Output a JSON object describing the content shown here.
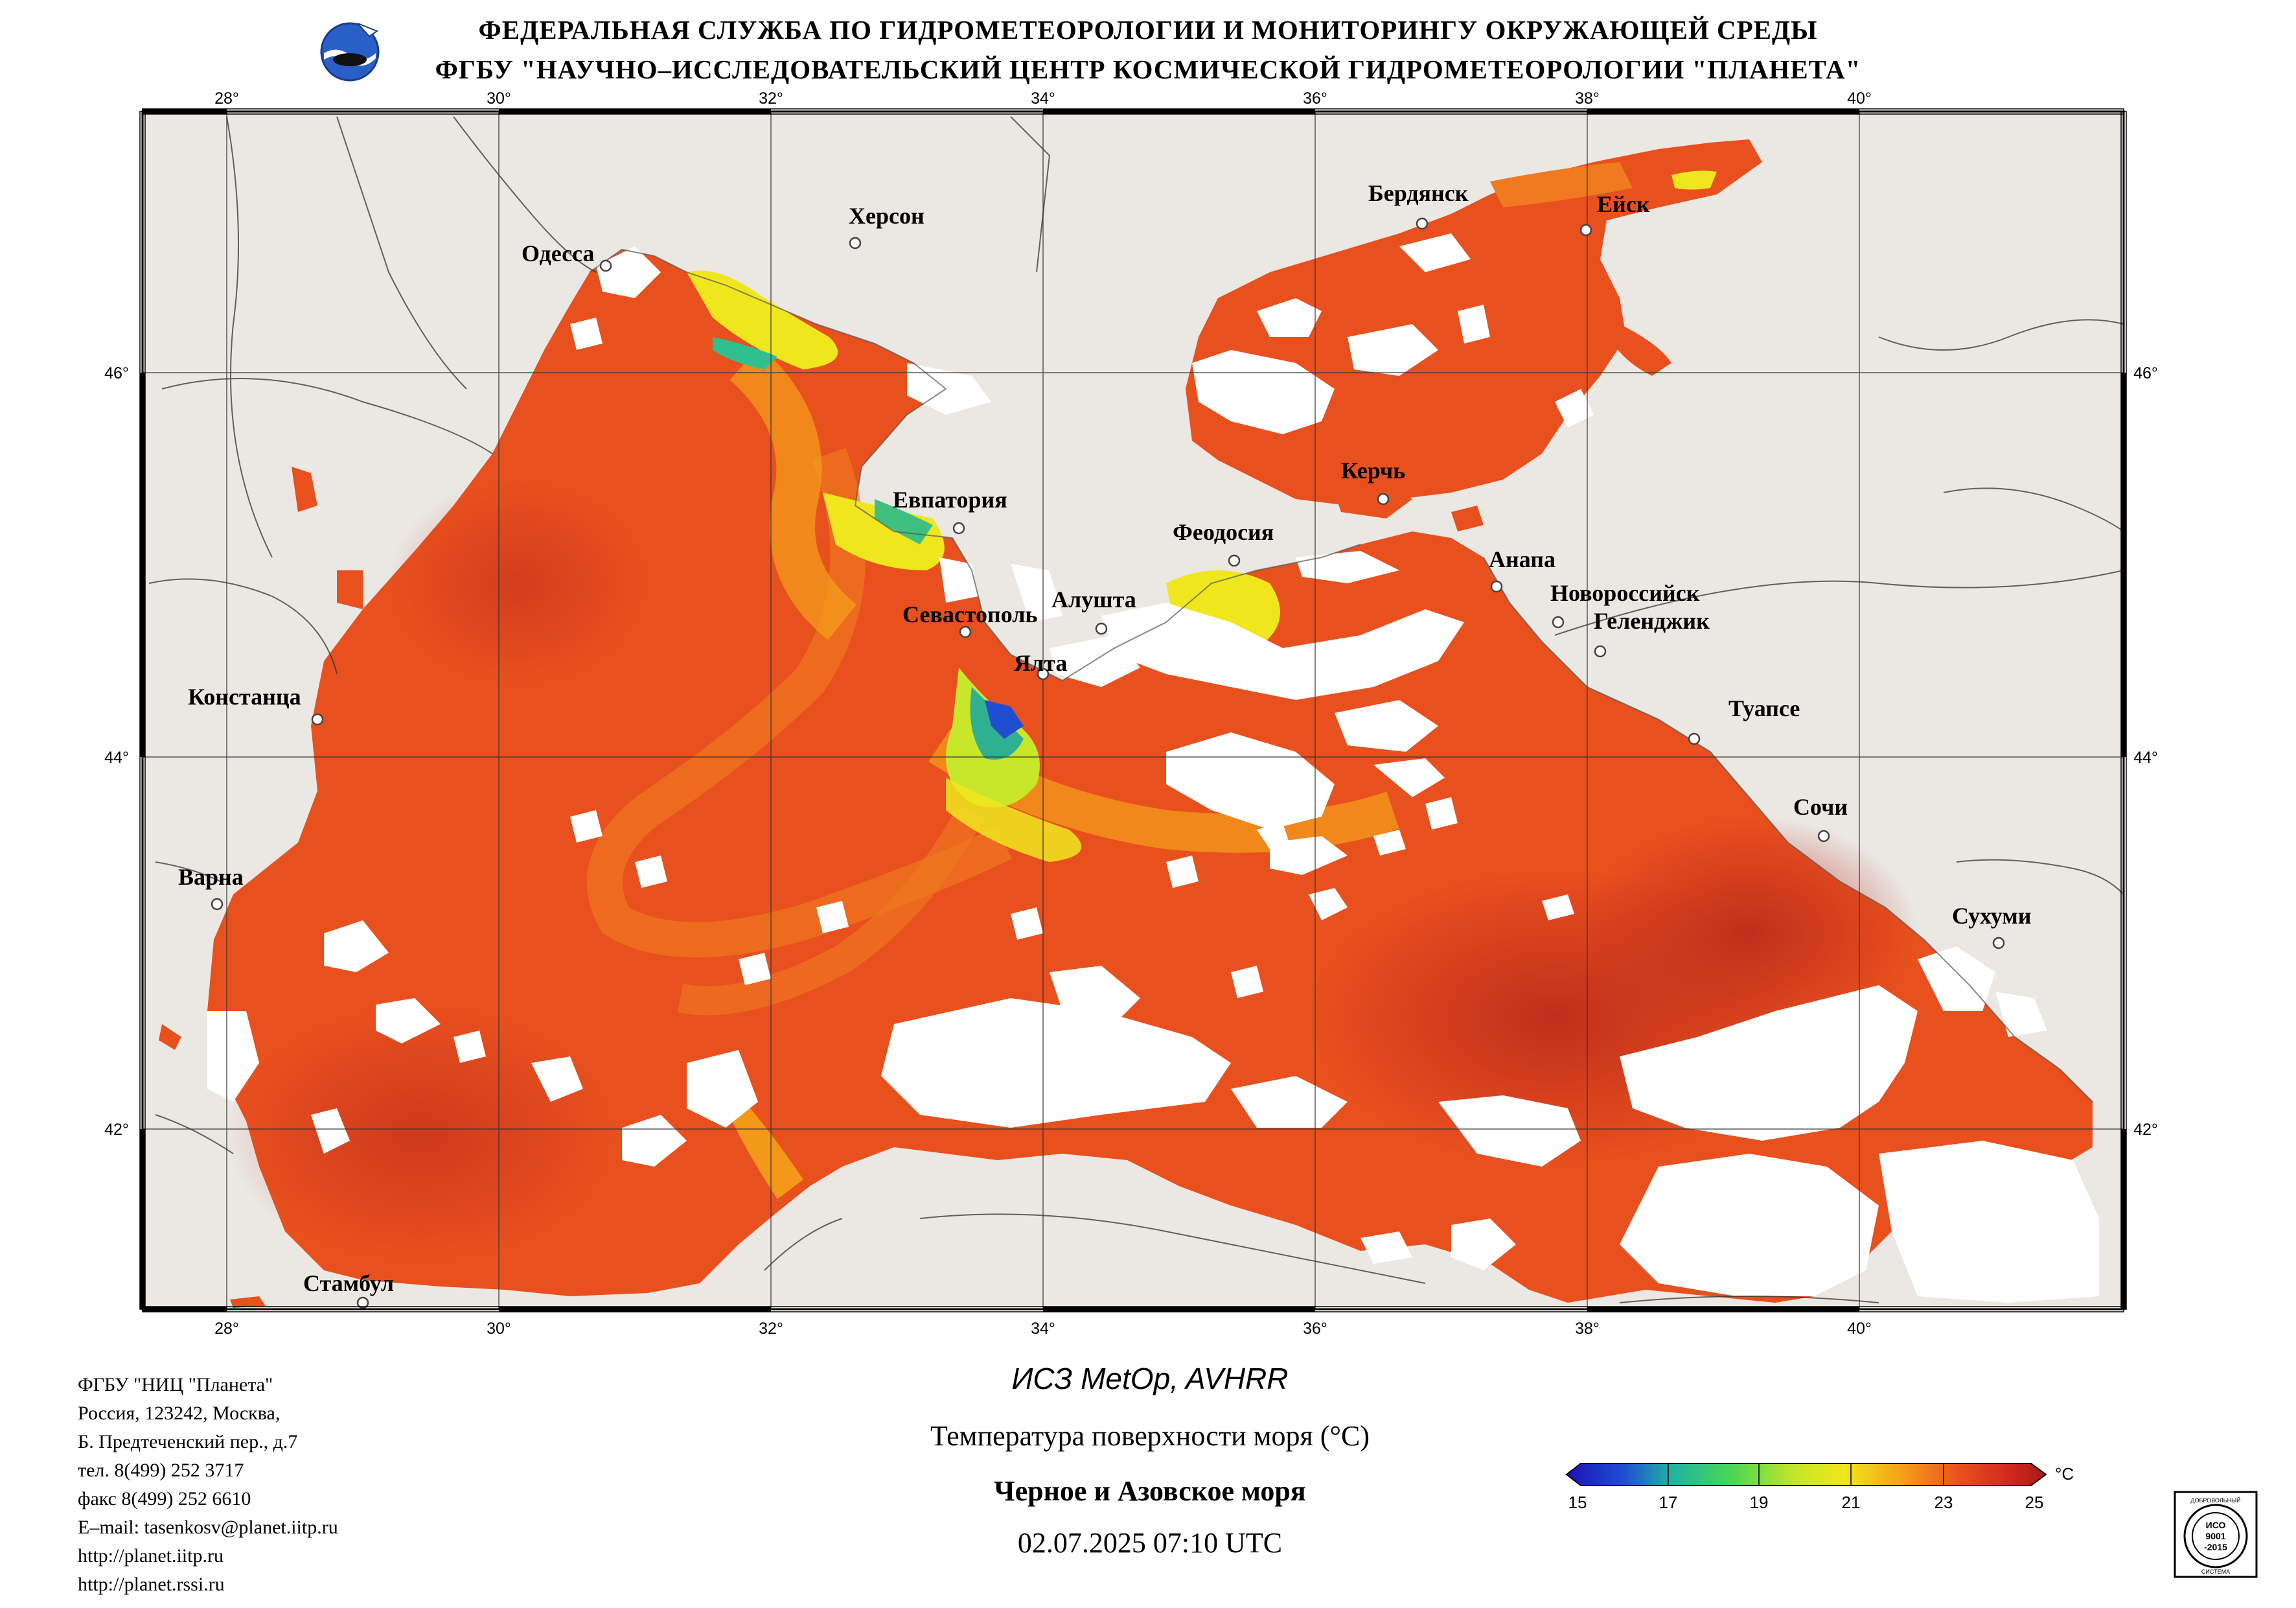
{
  "header": {
    "line1": "ФЕДЕРАЛЬНАЯ СЛУЖБА ПО ГИДРОМЕТЕОРОЛОГИИ И МОНИТОРИНГУ ОКРУЖАЮЩЕЙ СРЕДЫ",
    "line2": "ФГБУ \"НАУЧНО–ИССЛЕДОВАТЕЛЬСКИЙ ЦЕНТР КОСМИЧЕСКОЙ ГИДРОМЕТЕОРОЛОГИИ \"ПЛАНЕТА\""
  },
  "map": {
    "longitude_labels": [
      "28°",
      "30°",
      "32°",
      "34°",
      "36°",
      "38°",
      "40°"
    ],
    "latitude_labels": [
      "46°",
      "44°",
      "42°"
    ],
    "cities": [
      {
        "name": "Одесса"
      },
      {
        "name": "Херсон"
      },
      {
        "name": "Бердянск"
      },
      {
        "name": "Ейск"
      },
      {
        "name": "Евпатория"
      },
      {
        "name": "Керчь"
      },
      {
        "name": "Феодосия"
      },
      {
        "name": "Анапа"
      },
      {
        "name": "Новороссийск"
      },
      {
        "name": "Геленджик"
      },
      {
        "name": "Севастополь"
      },
      {
        "name": "Алушта"
      },
      {
        "name": "Ялта"
      },
      {
        "name": "Констанца"
      },
      {
        "name": "Туапсе"
      },
      {
        "name": "Сочи"
      },
      {
        "name": "Варна"
      },
      {
        "name": "Сухуми"
      },
      {
        "name": "Стамбул"
      }
    ],
    "colors": {
      "land": "#ebe7e3",
      "cloud": "#ffffff",
      "sea_warm": "#e8501e",
      "sea_hot": "#c8281e",
      "sea_cool": "#f5a019",
      "sea_cold": "#e6e619"
    }
  },
  "footer": {
    "org_lines": [
      "ФГБУ \"НИЦ \"Планета\"",
      "Россия, 123242, Москва,",
      "Б. Предтеченский пер., д.7",
      "тел. 8(499) 252 3717",
      "факс 8(499) 252 6610",
      "E–mail: tasenkosv@planet.iitp.ru",
      "http://planet.iitp.ru",
      "http://planet.rssi.ru"
    ],
    "satellite": "ИСЗ MetOp, AVHRR",
    "parameter": "Температура поверхности моря (°C)",
    "region": "Черное и Азовское моря",
    "datetime": "02.07.2025 07:10 UTC"
  },
  "colorbar": {
    "ticks": [
      "15",
      "17",
      "19",
      "21",
      "23",
      "25"
    ],
    "unit": "°C",
    "min": 15,
    "max": 25
  },
  "certificate": {
    "lines": [
      "ДОБРОВОЛЬНЫЙ",
      "ИСО",
      "9001",
      "-2015",
      "СИСТЕМА"
    ]
  }
}
